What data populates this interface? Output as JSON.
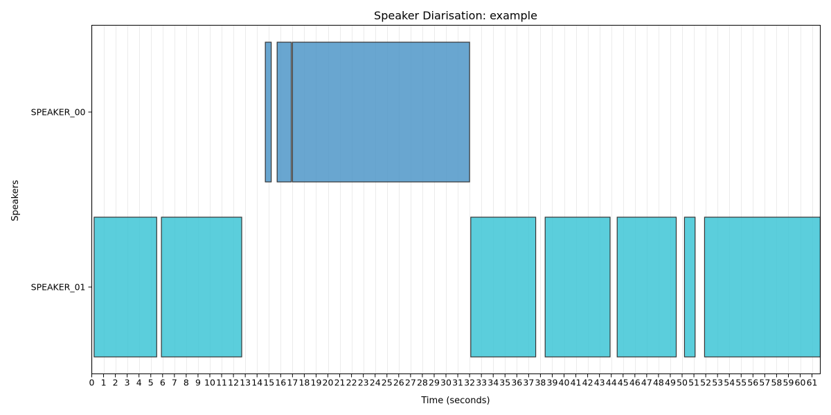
{
  "chart_data": {
    "type": "bar",
    "orientation": "horizontal-timeline",
    "title": "Speaker Diarisation: example",
    "xlabel": "Time (seconds)",
    "ylabel": "Speakers",
    "xlim": [
      0,
      61.7
    ],
    "xticks": [
      0,
      1,
      2,
      3,
      4,
      5,
      6,
      7,
      8,
      9,
      10,
      11,
      12,
      13,
      14,
      15,
      16,
      17,
      18,
      19,
      20,
      21,
      22,
      23,
      24,
      25,
      26,
      27,
      28,
      29,
      30,
      31,
      32,
      33,
      34,
      35,
      36,
      37,
      38,
      39,
      40,
      41,
      42,
      43,
      44,
      45,
      46,
      47,
      48,
      49,
      50,
      51,
      52,
      53,
      54,
      55,
      56,
      57,
      58,
      59,
      60,
      61
    ],
    "grid": "vertical",
    "categories": [
      "SPEAKER_00",
      "SPEAKER_01"
    ],
    "series": [
      {
        "name": "SPEAKER_00",
        "color": "#4f96c8",
        "segments": [
          [
            14.7,
            15.2
          ],
          [
            15.7,
            16.9
          ],
          [
            17.0,
            32.0
          ]
        ]
      },
      {
        "name": "SPEAKER_01",
        "color": "#3ec6d6",
        "segments": [
          [
            0.2,
            5.5
          ],
          [
            5.9,
            12.7
          ],
          [
            32.1,
            37.6
          ],
          [
            38.4,
            43.9
          ],
          [
            44.5,
            49.5
          ],
          [
            50.2,
            51.1
          ],
          [
            51.9,
            61.7
          ]
        ]
      }
    ]
  }
}
